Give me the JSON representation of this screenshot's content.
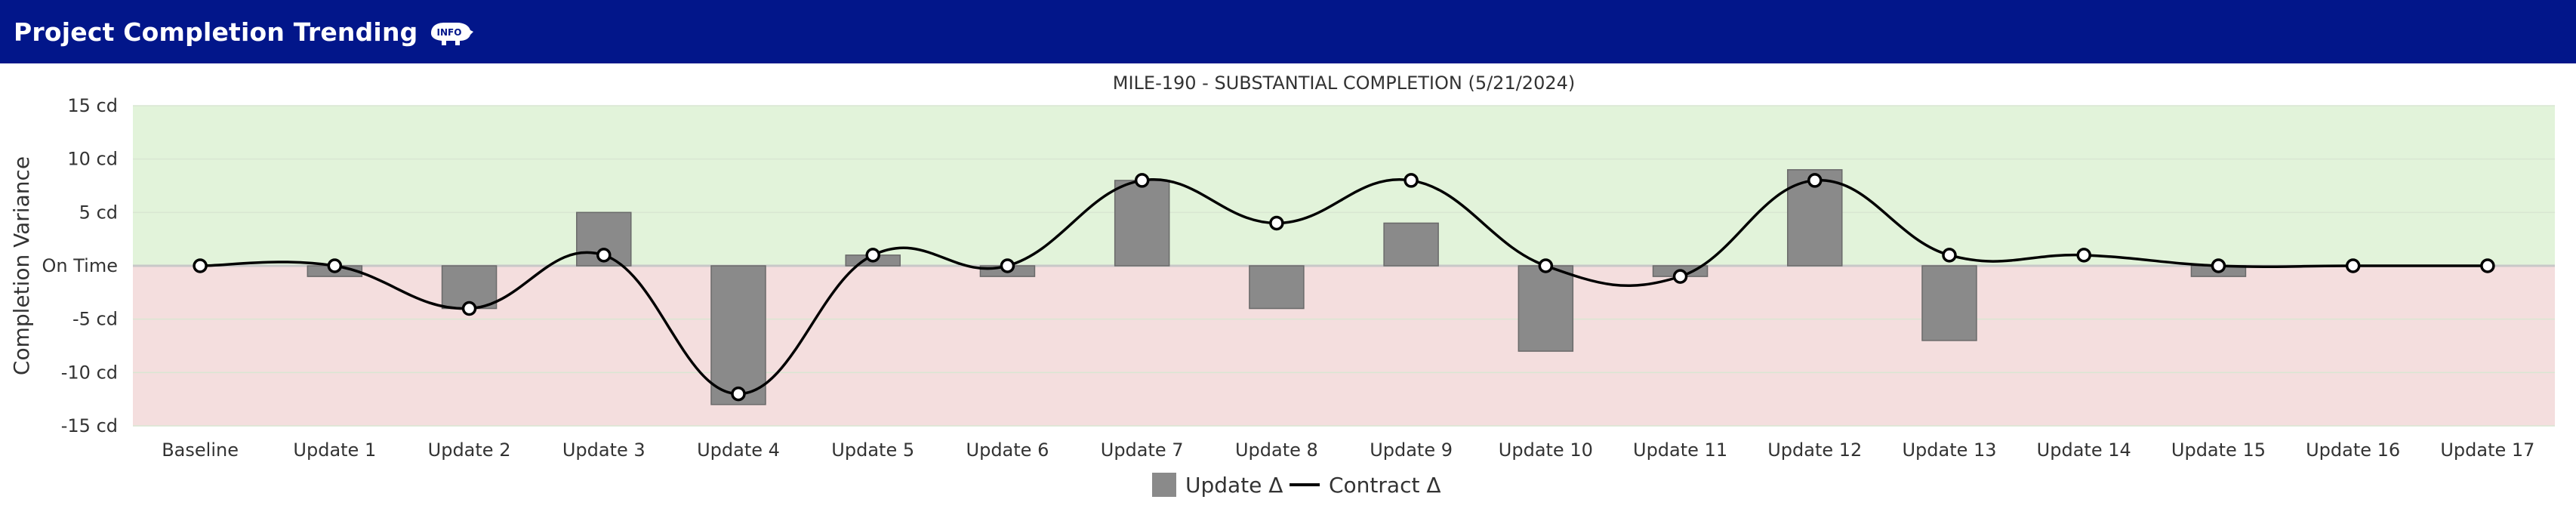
{
  "header": {
    "title": "Project Completion Trending",
    "icon": "info-icon"
  },
  "colors": {
    "header_bg": "#02168a",
    "positive_band": "#e2f3da",
    "negative_band": "#f4dede",
    "bar_fill": "#8a8a8a",
    "bar_stroke": "#6a6a6a",
    "line": "#000000"
  },
  "chart_data": {
    "type": "bar",
    "title": "MILE-190 - SUBSTANTIAL COMPLETION (5/21/2024)",
    "ylabel": "Completion Variance",
    "xlabel": "",
    "ylim": [
      -15,
      15
    ],
    "yticks": [
      15,
      10,
      5,
      0,
      -5,
      -10,
      -15
    ],
    "ytick_labels": [
      "15 cd",
      "10 cd",
      "5 cd",
      "On Time",
      "-5 cd",
      "-10 cd",
      "-15 cd"
    ],
    "grid": true,
    "legend_position": "bottom-center",
    "categories": [
      "Baseline",
      "Update 1",
      "Update 2",
      "Update 3",
      "Update 4",
      "Update 5",
      "Update 6",
      "Update 7",
      "Update 8",
      "Update 9",
      "Update 10",
      "Update 11",
      "Update 12",
      "Update 13",
      "Update 14",
      "Update 15",
      "Update 16",
      "Update 17"
    ],
    "series": [
      {
        "name": "Update Δ",
        "type": "bar",
        "values": [
          0,
          -1,
          -4,
          5,
          -13,
          1,
          -1,
          8,
          -4,
          4,
          -8,
          -1,
          9,
          -7,
          0,
          -1,
          0,
          0
        ]
      },
      {
        "name": "Contract Δ",
        "type": "line",
        "values": [
          0,
          0,
          -4,
          1,
          -12,
          1,
          0,
          8,
          4,
          8,
          0,
          -1,
          8,
          1,
          1,
          0,
          0,
          0
        ]
      }
    ]
  }
}
